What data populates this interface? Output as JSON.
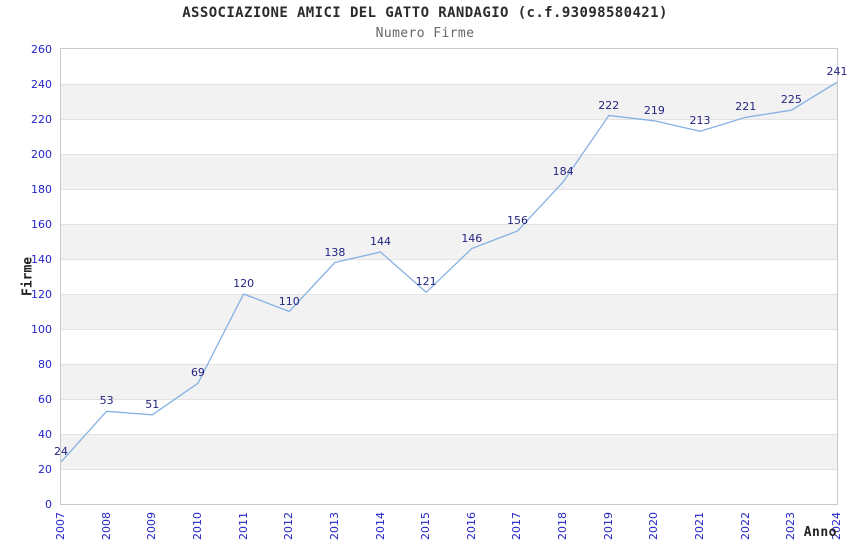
{
  "title": "ASSOCIAZIONE AMICI DEL GATTO RANDAGIO (c.f.93098580421)",
  "subtitle": "Numero Firme",
  "chart_data": {
    "type": "line",
    "title": "ASSOCIAZIONE AMICI DEL GATTO RANDAGIO (c.f.93098580421)",
    "subtitle": "Numero Firme",
    "xlabel": "Anno",
    "ylabel": "Firme",
    "categories": [
      "2007",
      "2008",
      "2009",
      "2010",
      "2011",
      "2012",
      "2013",
      "2014",
      "2015",
      "2016",
      "2017",
      "2018",
      "2019",
      "2020",
      "2021",
      "2022",
      "2023",
      "2024"
    ],
    "values": [
      24,
      53,
      51,
      69,
      120,
      110,
      138,
      144,
      121,
      146,
      156,
      184,
      222,
      219,
      213,
      221,
      225,
      241
    ],
    "ylim": [
      0,
      260
    ],
    "ytick_step": 20,
    "ytick_labels": [
      "0",
      "20",
      "40",
      "60",
      "80",
      "100",
      "120",
      "140",
      "160",
      "180",
      "200",
      "220",
      "240",
      "260"
    ],
    "grid": "alternating-horizontal-bands",
    "legend": "none",
    "colors": {
      "line": "#86b1e3",
      "data_label": "#242480",
      "tick_label": "#2424cc",
      "band_fill": "#f2f2f2",
      "grid_line": "#e3e3e3",
      "plot_border": "#c9c9c9",
      "title_text": "#2b2b2b",
      "subtitle_text": "#666666",
      "axis_title_text": "#222222"
    }
  }
}
